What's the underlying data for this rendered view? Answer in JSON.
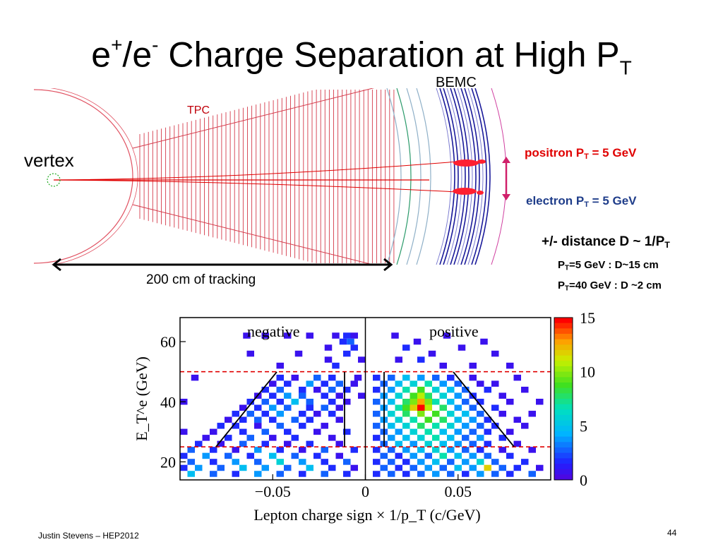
{
  "slide": {
    "title_main": "e",
    "title_sup1": "+",
    "title_mid": "/e",
    "title_sup2": "-",
    "title_rest": " Charge Separation at High P",
    "title_sub": "T",
    "footer_author": "Justin Stevens – HEP2012",
    "page_number": "44"
  },
  "detector": {
    "tpc_label": "TPC",
    "bemc_label": "BEMC",
    "vertex_label": "vertex",
    "tracking_label": "200 cm of tracking",
    "positron_text": "positron  P",
    "positron_sub": "T",
    "positron_val": " = 5 GeV",
    "electron_text": "electron  P",
    "electron_sub": "T",
    "electron_val": " = 5 GeV",
    "distance_text": "+/- distance D ~ 1/P",
    "distance_sub": "T",
    "pt5_pre": "P",
    "pt5_sub": "T",
    "pt5_post": "=5 GeV    : D~15 cm",
    "pt40_pre": "P",
    "pt40_sub": "T",
    "pt40_post": "=40 GeV  : D ~2 cm",
    "colors": {
      "tpc": "#d43a4a",
      "track": "#e00000",
      "bemc": "#1a1a9a",
      "arrow": "#d0206a"
    }
  },
  "chart_data": {
    "type": "heatmap",
    "xlabel": "Lepton charge sign × 1/p_T (c/GeV)",
    "ylabel": "E_T^e (GeV)",
    "xlim": [
      -0.1,
      0.1
    ],
    "ylim": [
      14,
      68
    ],
    "x_ticks": [
      "−0.05",
      "0",
      "0.05"
    ],
    "x_tick_values": [
      -0.05,
      0,
      0.05
    ],
    "y_ticks": [
      "20",
      "40",
      "60"
    ],
    "y_tick_values": [
      20,
      40,
      60
    ],
    "annotations": [
      "negative",
      "positive"
    ],
    "cut_lines_y": [
      50,
      25
    ],
    "colorbar_ticks": [
      "15",
      "10",
      "5",
      "0"
    ],
    "colorbar_values": [
      15,
      10,
      5,
      0
    ],
    "colorbar_range": [
      0,
      15
    ],
    "bin_size": [
      0.004,
      2
    ],
    "cells": [
      [
        -0.064,
        62,
        1
      ],
      [
        -0.054,
        62,
        1
      ],
      [
        -0.042,
        62,
        1
      ],
      [
        -0.03,
        62,
        1
      ],
      [
        -0.016,
        62,
        1
      ],
      [
        -0.01,
        62,
        2
      ],
      [
        -0.006,
        62,
        1
      ],
      [
        -0.012,
        60,
        2
      ],
      [
        -0.008,
        60,
        3
      ],
      [
        -0.02,
        58,
        1
      ],
      [
        -0.006,
        58,
        2
      ],
      [
        -0.062,
        56,
        1
      ],
      [
        -0.036,
        56,
        1
      ],
      [
        -0.01,
        56,
        2
      ],
      [
        -0.02,
        54,
        1
      ],
      [
        -0.002,
        54,
        1
      ],
      [
        -0.046,
        52,
        1
      ],
      [
        -0.016,
        52,
        2
      ],
      [
        -0.092,
        48,
        1
      ],
      [
        -0.046,
        48,
        2
      ],
      [
        -0.038,
        48,
        1
      ],
      [
        -0.026,
        48,
        3
      ],
      [
        -0.018,
        48,
        2
      ],
      [
        -0.004,
        48,
        1
      ],
      [
        -0.05,
        46,
        1
      ],
      [
        -0.042,
        46,
        2
      ],
      [
        -0.03,
        46,
        4
      ],
      [
        -0.022,
        46,
        2
      ],
      [
        -0.014,
        46,
        3
      ],
      [
        -0.006,
        46,
        1
      ],
      [
        -0.054,
        44,
        2
      ],
      [
        -0.046,
        44,
        3
      ],
      [
        -0.034,
        44,
        2
      ],
      [
        -0.026,
        44,
        1
      ],
      [
        -0.018,
        44,
        3
      ],
      [
        -0.01,
        44,
        2
      ],
      [
        -0.058,
        42,
        1
      ],
      [
        -0.05,
        42,
        2
      ],
      [
        -0.042,
        42,
        4
      ],
      [
        -0.034,
        42,
        3
      ],
      [
        -0.022,
        42,
        2
      ],
      [
        -0.014,
        42,
        1
      ],
      [
        -0.002,
        42,
        1
      ],
      [
        -0.098,
        40,
        1
      ],
      [
        -0.062,
        40,
        2
      ],
      [
        -0.054,
        40,
        3
      ],
      [
        -0.046,
        40,
        2
      ],
      [
        -0.038,
        40,
        5
      ],
      [
        -0.03,
        40,
        3
      ],
      [
        -0.018,
        40,
        2
      ],
      [
        -0.01,
        40,
        1
      ],
      [
        -0.066,
        38,
        1
      ],
      [
        -0.058,
        38,
        2
      ],
      [
        -0.05,
        38,
        4
      ],
      [
        -0.042,
        38,
        3
      ],
      [
        -0.03,
        38,
        2
      ],
      [
        -0.022,
        38,
        3
      ],
      [
        -0.014,
        38,
        1
      ],
      [
        -0.07,
        36,
        2
      ],
      [
        -0.062,
        36,
        3
      ],
      [
        -0.054,
        36,
        2
      ],
      [
        -0.046,
        36,
        4
      ],
      [
        -0.034,
        36,
        2
      ],
      [
        -0.026,
        36,
        1
      ],
      [
        -0.018,
        36,
        2
      ],
      [
        -0.074,
        34,
        1
      ],
      [
        -0.066,
        34,
        2
      ],
      [
        -0.058,
        34,
        3
      ],
      [
        -0.05,
        34,
        2
      ],
      [
        -0.038,
        34,
        3
      ],
      [
        -0.03,
        34,
        2
      ],
      [
        -0.014,
        34,
        1
      ],
      [
        -0.078,
        32,
        2
      ],
      [
        -0.07,
        32,
        2
      ],
      [
        -0.058,
        32,
        1
      ],
      [
        -0.046,
        32,
        3
      ],
      [
        -0.034,
        32,
        2
      ],
      [
        -0.022,
        32,
        1
      ],
      [
        -0.098,
        30,
        1
      ],
      [
        -0.082,
        30,
        1
      ],
      [
        -0.066,
        30,
        2
      ],
      [
        -0.054,
        30,
        3
      ],
      [
        -0.042,
        30,
        2
      ],
      [
        -0.026,
        30,
        1
      ],
      [
        -0.01,
        30,
        2
      ],
      [
        -0.086,
        28,
        1
      ],
      [
        -0.074,
        28,
        2
      ],
      [
        -0.062,
        28,
        3
      ],
      [
        -0.05,
        28,
        1
      ],
      [
        -0.038,
        28,
        2
      ],
      [
        -0.018,
        28,
        1
      ],
      [
        -0.09,
        26,
        2
      ],
      [
        -0.078,
        26,
        1
      ],
      [
        -0.066,
        26,
        3
      ],
      [
        -0.054,
        26,
        2
      ],
      [
        -0.042,
        26,
        1
      ],
      [
        -0.03,
        26,
        2
      ],
      [
        -0.014,
        26,
        1
      ],
      [
        -0.094,
        24,
        3
      ],
      [
        -0.082,
        24,
        2
      ],
      [
        -0.07,
        24,
        1
      ],
      [
        -0.058,
        24,
        4
      ],
      [
        -0.046,
        24,
        2
      ],
      [
        -0.034,
        24,
        1
      ],
      [
        -0.022,
        24,
        3
      ],
      [
        -0.006,
        24,
        2
      ],
      [
        -0.098,
        22,
        2
      ],
      [
        -0.086,
        22,
        4
      ],
      [
        -0.074,
        22,
        3
      ],
      [
        -0.062,
        22,
        2
      ],
      [
        -0.05,
        22,
        5
      ],
      [
        -0.038,
        22,
        3
      ],
      [
        -0.026,
        22,
        2
      ],
      [
        -0.014,
        22,
        1
      ],
      [
        -0.094,
        20,
        3
      ],
      [
        -0.082,
        20,
        2
      ],
      [
        -0.07,
        20,
        4
      ],
      [
        -0.058,
        20,
        3
      ],
      [
        -0.046,
        20,
        6
      ],
      [
        -0.034,
        20,
        4
      ],
      [
        -0.022,
        20,
        2
      ],
      [
        -0.01,
        20,
        3
      ],
      [
        -0.098,
        18,
        2
      ],
      [
        -0.09,
        18,
        4
      ],
      [
        -0.078,
        18,
        3
      ],
      [
        -0.066,
        18,
        5
      ],
      [
        -0.054,
        18,
        4
      ],
      [
        -0.042,
        18,
        3
      ],
      [
        -0.03,
        18,
        5
      ],
      [
        -0.018,
        18,
        2
      ],
      [
        -0.006,
        18,
        1
      ],
      [
        -0.094,
        16,
        5
      ],
      [
        -0.082,
        16,
        3
      ],
      [
        -0.07,
        16,
        2
      ],
      [
        -0.058,
        16,
        4
      ],
      [
        -0.046,
        16,
        3
      ],
      [
        -0.034,
        16,
        2
      ],
      [
        -0.022,
        16,
        3
      ],
      [
        -0.01,
        16,
        2
      ],
      [
        0.016,
        62,
        1
      ],
      [
        0.028,
        60,
        1
      ],
      [
        0.044,
        62,
        1
      ],
      [
        0.064,
        60,
        1
      ],
      [
        0.022,
        58,
        2
      ],
      [
        0.036,
        56,
        1
      ],
      [
        0.052,
        58,
        1
      ],
      [
        0.07,
        56,
        1
      ],
      [
        0.018,
        54,
        1
      ],
      [
        0.03,
        54,
        2
      ],
      [
        0.042,
        52,
        1
      ],
      [
        0.058,
        52,
        1
      ],
      [
        0.078,
        52,
        1
      ],
      [
        0.006,
        48,
        2
      ],
      [
        0.014,
        48,
        3
      ],
      [
        0.022,
        48,
        5
      ],
      [
        0.03,
        48,
        4
      ],
      [
        0.038,
        48,
        3
      ],
      [
        0.046,
        48,
        2
      ],
      [
        0.058,
        48,
        1
      ],
      [
        0.082,
        48,
        1
      ],
      [
        0.01,
        46,
        3
      ],
      [
        0.018,
        46,
        5
      ],
      [
        0.026,
        46,
        6
      ],
      [
        0.034,
        46,
        7
      ],
      [
        0.042,
        46,
        4
      ],
      [
        0.05,
        46,
        3
      ],
      [
        0.062,
        46,
        1
      ],
      [
        0.07,
        46,
        1
      ],
      [
        0.006,
        44,
        2
      ],
      [
        0.014,
        44,
        4
      ],
      [
        0.022,
        44,
        7
      ],
      [
        0.03,
        44,
        9
      ],
      [
        0.038,
        44,
        6
      ],
      [
        0.046,
        44,
        5
      ],
      [
        0.054,
        44,
        3
      ],
      [
        0.066,
        44,
        2
      ],
      [
        0.086,
        44,
        1
      ],
      [
        0.01,
        42,
        4
      ],
      [
        0.018,
        42,
        6
      ],
      [
        0.026,
        42,
        9
      ],
      [
        0.03,
        42,
        11
      ],
      [
        0.034,
        42,
        8
      ],
      [
        0.042,
        42,
        6
      ],
      [
        0.05,
        42,
        4
      ],
      [
        0.058,
        42,
        2
      ],
      [
        0.074,
        42,
        1
      ],
      [
        0.006,
        40,
        3
      ],
      [
        0.014,
        40,
        5
      ],
      [
        0.022,
        40,
        8
      ],
      [
        0.026,
        40,
        10
      ],
      [
        0.03,
        40,
        13
      ],
      [
        0.034,
        40,
        10
      ],
      [
        0.038,
        40,
        7
      ],
      [
        0.046,
        40,
        5
      ],
      [
        0.054,
        40,
        3
      ],
      [
        0.062,
        40,
        2
      ],
      [
        0.078,
        40,
        1
      ],
      [
        0.094,
        40,
        1
      ],
      [
        0.01,
        38,
        4
      ],
      [
        0.018,
        38,
        7
      ],
      [
        0.022,
        38,
        9
      ],
      [
        0.026,
        38,
        12
      ],
      [
        0.03,
        38,
        15
      ],
      [
        0.034,
        38,
        11
      ],
      [
        0.042,
        38,
        8
      ],
      [
        0.05,
        38,
        4
      ],
      [
        0.058,
        38,
        3
      ],
      [
        0.07,
        38,
        2
      ],
      [
        0.006,
        36,
        3
      ],
      [
        0.014,
        36,
        6
      ],
      [
        0.022,
        36,
        8
      ],
      [
        0.03,
        36,
        10
      ],
      [
        0.038,
        36,
        9
      ],
      [
        0.046,
        36,
        6
      ],
      [
        0.054,
        36,
        5
      ],
      [
        0.062,
        36,
        3
      ],
      [
        0.074,
        36,
        1
      ],
      [
        0.09,
        36,
        1
      ],
      [
        0.01,
        34,
        4
      ],
      [
        0.018,
        34,
        6
      ],
      [
        0.026,
        34,
        7
      ],
      [
        0.034,
        34,
        9
      ],
      [
        0.042,
        34,
        8
      ],
      [
        0.05,
        34,
        5
      ],
      [
        0.058,
        34,
        4
      ],
      [
        0.066,
        34,
        2
      ],
      [
        0.082,
        34,
        1
      ],
      [
        0.006,
        32,
        3
      ],
      [
        0.014,
        32,
        5
      ],
      [
        0.022,
        32,
        6
      ],
      [
        0.03,
        32,
        8
      ],
      [
        0.038,
        32,
        7
      ],
      [
        0.046,
        32,
        6
      ],
      [
        0.054,
        32,
        4
      ],
      [
        0.062,
        32,
        3
      ],
      [
        0.07,
        32,
        2
      ],
      [
        0.086,
        32,
        1
      ],
      [
        0.01,
        30,
        3
      ],
      [
        0.018,
        30,
        4
      ],
      [
        0.026,
        30,
        6
      ],
      [
        0.034,
        30,
        7
      ],
      [
        0.042,
        30,
        5
      ],
      [
        0.05,
        30,
        4
      ],
      [
        0.058,
        30,
        3
      ],
      [
        0.066,
        30,
        2
      ],
      [
        0.078,
        30,
        1
      ],
      [
        0.006,
        28,
        2
      ],
      [
        0.014,
        28,
        4
      ],
      [
        0.022,
        28,
        5
      ],
      [
        0.03,
        28,
        6
      ],
      [
        0.038,
        28,
        7
      ],
      [
        0.046,
        28,
        5
      ],
      [
        0.054,
        28,
        3
      ],
      [
        0.062,
        28,
        4
      ],
      [
        0.074,
        28,
        2
      ],
      [
        0.01,
        26,
        3
      ],
      [
        0.018,
        26,
        5
      ],
      [
        0.026,
        26,
        4
      ],
      [
        0.034,
        26,
        6
      ],
      [
        0.042,
        26,
        5
      ],
      [
        0.05,
        26,
        4
      ],
      [
        0.058,
        26,
        3
      ],
      [
        0.066,
        26,
        2
      ],
      [
        0.082,
        26,
        1
      ],
      [
        0.006,
        24,
        2
      ],
      [
        0.014,
        24,
        3
      ],
      [
        0.022,
        24,
        4
      ],
      [
        0.03,
        24,
        5
      ],
      [
        0.038,
        24,
        6
      ],
      [
        0.046,
        24,
        4
      ],
      [
        0.054,
        24,
        3
      ],
      [
        0.062,
        24,
        2
      ],
      [
        0.074,
        24,
        1
      ],
      [
        0.09,
        24,
        1
      ],
      [
        0.01,
        22,
        3
      ],
      [
        0.018,
        22,
        2
      ],
      [
        0.026,
        22,
        4
      ],
      [
        0.034,
        22,
        3
      ],
      [
        0.042,
        22,
        7
      ],
      [
        0.05,
        22,
        5
      ],
      [
        0.058,
        22,
        4
      ],
      [
        0.066,
        22,
        3
      ],
      [
        0.078,
        22,
        2
      ],
      [
        0.006,
        20,
        2
      ],
      [
        0.014,
        20,
        3
      ],
      [
        0.022,
        20,
        2
      ],
      [
        0.03,
        20,
        4
      ],
      [
        0.038,
        20,
        5
      ],
      [
        0.046,
        20,
        3
      ],
      [
        0.054,
        20,
        4
      ],
      [
        0.062,
        20,
        6
      ],
      [
        0.07,
        20,
        3
      ],
      [
        0.086,
        20,
        2
      ],
      [
        0.01,
        18,
        3
      ],
      [
        0.018,
        18,
        2
      ],
      [
        0.026,
        18,
        3
      ],
      [
        0.034,
        18,
        4
      ],
      [
        0.042,
        18,
        3
      ],
      [
        0.05,
        18,
        5
      ],
      [
        0.058,
        18,
        4
      ],
      [
        0.066,
        18,
        12
      ],
      [
        0.074,
        18,
        3
      ],
      [
        0.082,
        18,
        2
      ],
      [
        0.094,
        18,
        1
      ],
      [
        0.006,
        16,
        2
      ],
      [
        0.014,
        16,
        3
      ],
      [
        0.022,
        16,
        2
      ],
      [
        0.03,
        16,
        3
      ],
      [
        0.038,
        16,
        4
      ],
      [
        0.046,
        16,
        3
      ],
      [
        0.054,
        16,
        2
      ],
      [
        0.062,
        16,
        4
      ],
      [
        0.07,
        16,
        3
      ],
      [
        0.078,
        16,
        2
      ],
      [
        0.09,
        16,
        3
      ]
    ]
  }
}
